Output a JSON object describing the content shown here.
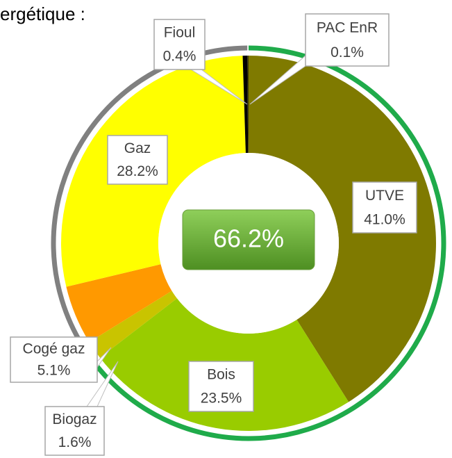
{
  "chart_data": {
    "type": "donut",
    "title": "ergétique :",
    "center_label": "66.2%",
    "categories": [
      "UTVE",
      "Bois",
      "Biogaz",
      "Cogé gaz",
      "Gaz",
      "Fioul",
      "PAC EnR"
    ],
    "values": [
      41.0,
      23.5,
      1.6,
      5.1,
      28.2,
      0.4,
      0.1
    ],
    "value_labels": [
      "41.0%",
      "23.5%",
      "1.6%",
      "5.1%",
      "28.2%",
      "0.4%",
      "0.1%"
    ],
    "colors": [
      "#7f7a00",
      "#99cc00",
      "#c9c400",
      "#ff9900",
      "#ffff00",
      "#000000",
      "#3d3a00"
    ]
  }
}
